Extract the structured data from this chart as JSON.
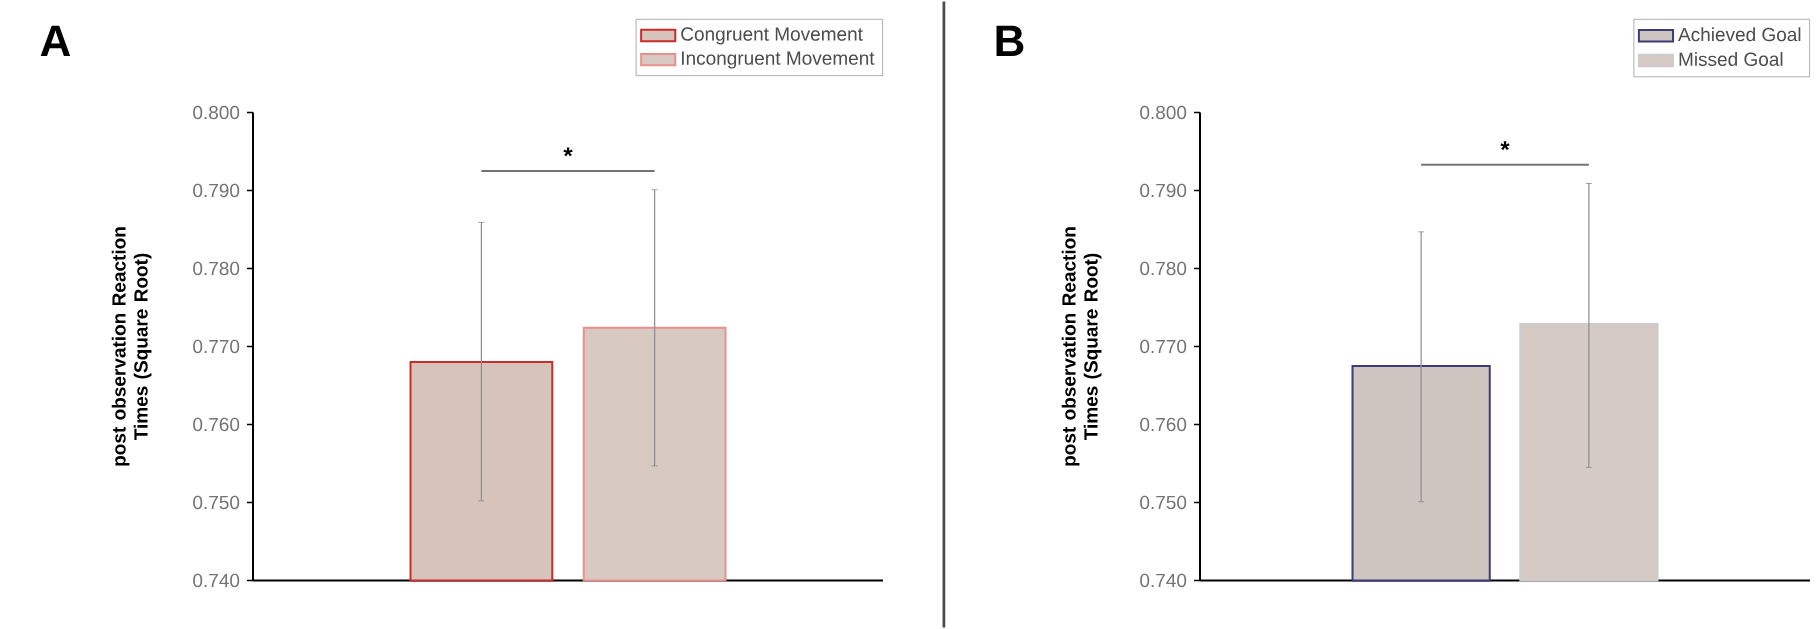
{
  "chart_data": [
    {
      "type": "bar",
      "title": "A",
      "ylabel": "post observation Reaction Times (Square Root)",
      "categories": [
        null
      ],
      "series": [
        {
          "name": "Congruent Movement",
          "color": "#cc2b2b",
          "values": [
            0.768
          ],
          "errors": [
            [
              0.7502,
              0.7859
            ]
          ]
        },
        {
          "name": "Incongruent Movement",
          "color": "#e8908e",
          "values": [
            0.7724
          ],
          "errors": [
            [
              0.7547,
              0.7901
            ]
          ]
        }
      ],
      "ylim": [
        0.74,
        0.8
      ],
      "yticks": [
        {
          "value": 0.74,
          "label": "0.740"
        },
        {
          "value": 0.75,
          "label": "0.750"
        },
        {
          "value": 0.76,
          "label": "0.760"
        },
        {
          "value": 0.77,
          "label": "0.770"
        },
        {
          "value": 0.78,
          "label": "0.780"
        },
        {
          "value": 0.79,
          "label": "0.790"
        },
        {
          "value": 0.8,
          "label": "0.800"
        }
      ],
      "legend": "top right",
      "annotations": [
        "*"
      ]
    },
    {
      "type": "bar",
      "title": "B",
      "ylabel": "post observation Reaction Times (Square Root)",
      "categories": [
        null
      ],
      "series": [
        {
          "name": "Achieved Goal",
          "color": "#3c3c78",
          "values": [
            0.7675
          ],
          "errors": [
            [
              0.7501,
              0.7847
            ]
          ]
        },
        {
          "name": "Missed Goal",
          "color": "#cccccc",
          "values": [
            0.7729
          ],
          "errors": [
            [
              0.7545,
              0.7909
            ]
          ]
        }
      ],
      "ylim": [
        0.74,
        0.8
      ],
      "yticks": [
        {
          "value": 0.74,
          "label": "0.740"
        },
        {
          "value": 0.75,
          "label": "0.750"
        },
        {
          "value": 0.76,
          "label": "0.760"
        },
        {
          "value": 0.77,
          "label": "0.770"
        },
        {
          "value": 0.78,
          "label": "0.780"
        },
        {
          "value": 0.79,
          "label": "0.790"
        },
        {
          "value": 0.8,
          "label": "0.800"
        }
      ],
      "legend": "top right",
      "annotations": [
        "*"
      ]
    }
  ]
}
